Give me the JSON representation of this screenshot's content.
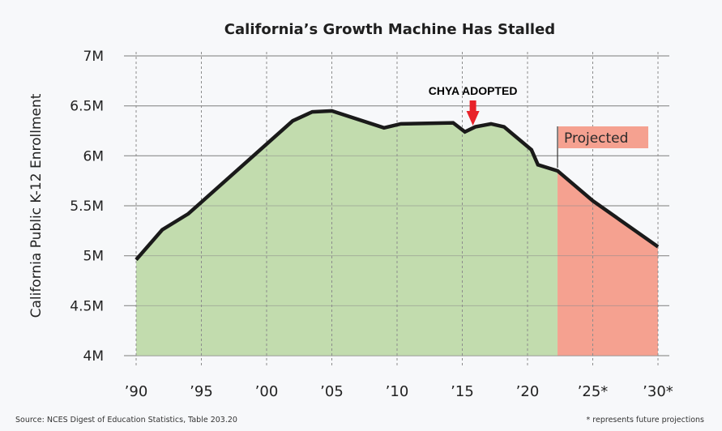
{
  "chart_data": {
    "type": "area",
    "title": "California’s Growth Machine Has Stalled",
    "xlabel": "",
    "ylabel": "California Public K-12 Enrollment",
    "xlim": [
      1990,
      2030
    ],
    "ylim": [
      4000000,
      7000000
    ],
    "grid": true,
    "y_ticks": [
      {
        "value": 4000000,
        "label": "4M"
      },
      {
        "value": 4500000,
        "label": "4.5M"
      },
      {
        "value": 5000000,
        "label": "5M"
      },
      {
        "value": 5500000,
        "label": "5.5M"
      },
      {
        "value": 6000000,
        "label": "6M"
      },
      {
        "value": 6500000,
        "label": "6.5M"
      },
      {
        "value": 7000000,
        "label": "7M"
      }
    ],
    "x_ticks": [
      {
        "value": 1990,
        "label": "’90"
      },
      {
        "value": 1995,
        "label": "’95"
      },
      {
        "value": 2000,
        "label": "’00"
      },
      {
        "value": 2005,
        "label": "’05"
      },
      {
        "value": 2010,
        "label": "’10"
      },
      {
        "value": 2015,
        "label": "’15"
      },
      {
        "value": 2020,
        "label": "’20"
      },
      {
        "value": 2025,
        "label": "’25*"
      },
      {
        "value": 2030,
        "label": "’30*"
      }
    ],
    "series": [
      {
        "name": "Enrollment",
        "points": [
          {
            "x": 1990,
            "y": 4960000
          },
          {
            "x": 1992,
            "y": 5260000
          },
          {
            "x": 1994,
            "y": 5420000
          },
          {
            "x": 2002,
            "y": 6350000
          },
          {
            "x": 2003.5,
            "y": 6440000
          },
          {
            "x": 2005,
            "y": 6450000
          },
          {
            "x": 2009,
            "y": 6280000
          },
          {
            "x": 2010.3,
            "y": 6320000
          },
          {
            "x": 2014.3,
            "y": 6330000
          },
          {
            "x": 2015.2,
            "y": 6240000
          },
          {
            "x": 2016,
            "y": 6290000
          },
          {
            "x": 2017.2,
            "y": 6320000
          },
          {
            "x": 2018.2,
            "y": 6290000
          },
          {
            "x": 2020.3,
            "y": 6060000
          },
          {
            "x": 2020.8,
            "y": 5910000
          },
          {
            "x": 2022.3,
            "y": 5850000
          },
          {
            "x": 2025,
            "y": 5550000
          },
          {
            "x": 2030,
            "y": 5090000
          }
        ]
      }
    ],
    "projection_start": 2022.3,
    "colors": {
      "historical_fill": "#c2dcae",
      "projected_fill": "#f5a190",
      "line": "#1a1a1a",
      "arrow": "#e8232a",
      "background": "#f7f8fa"
    },
    "annotations": [
      {
        "text": "CHYA ADOPTED",
        "x": 2016,
        "type": "arrow"
      },
      {
        "text": "Projected",
        "x": 2022.3,
        "type": "label"
      }
    ],
    "source": "Source: NCES Digest of Education Statistics, Table 203.20",
    "footnote": "* represents future projections"
  }
}
